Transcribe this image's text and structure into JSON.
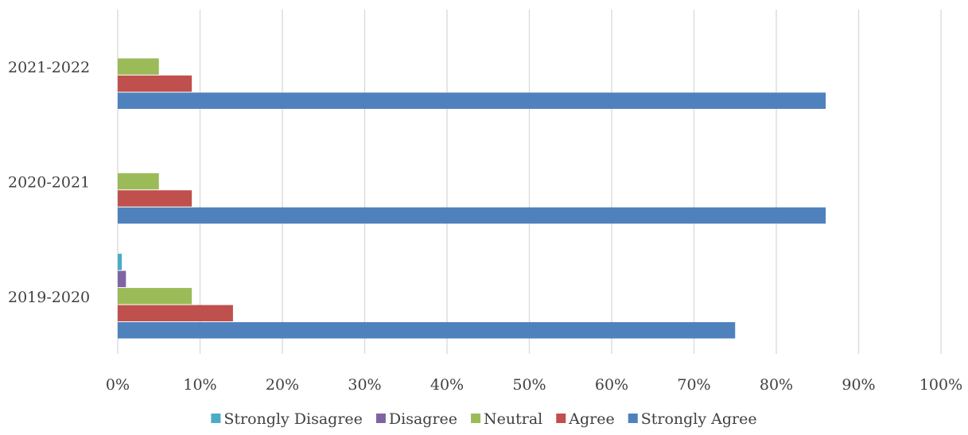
{
  "chart_data": {
    "type": "bar",
    "orientation": "horizontal",
    "categories": [
      "2019-2020",
      "2020-2021",
      "2021-2022"
    ],
    "series": [
      {
        "name": "Strongly Disagree",
        "color": "#4bacc6",
        "values": [
          0.5,
          0,
          0
        ]
      },
      {
        "name": "Disagree",
        "color": "#8064a2",
        "values": [
          1,
          0,
          0
        ]
      },
      {
        "name": "Neutral",
        "color": "#9bbb59",
        "values": [
          9,
          5,
          5
        ]
      },
      {
        "name": "Agree",
        "color": "#c0504d",
        "values": [
          14,
          9,
          9
        ]
      },
      {
        "name": "Strongly Agree",
        "color": "#4f81bd",
        "values": [
          75,
          86,
          86
        ]
      }
    ],
    "xlim": [
      0,
      100
    ],
    "x_ticks": [
      0,
      10,
      20,
      30,
      40,
      50,
      60,
      70,
      80,
      90,
      100
    ],
    "x_tick_labels": [
      "0%",
      "10%",
      "20%",
      "30%",
      "40%",
      "50%",
      "60%",
      "70%",
      "80%",
      "90%",
      "100%"
    ],
    "grid": true,
    "legend_position": "bottom",
    "title": "",
    "xlabel": "",
    "ylabel": ""
  }
}
